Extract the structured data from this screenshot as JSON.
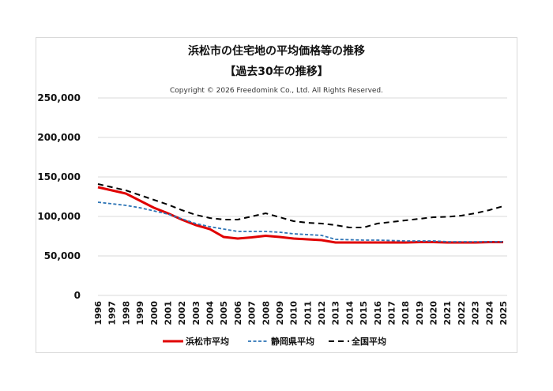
{
  "chart_data": {
    "type": "line",
    "title": "浜松市の住宅地の平均価格等の推移",
    "subtitle": "【過去30年の推移】",
    "copyright": "Copyright © 2026 Freedomink Co., Ltd. All Rights Reserved.",
    "ylim": [
      0,
      250000
    ],
    "yticks": [
      "0",
      "50,000",
      "100,000",
      "150,000",
      "200,000",
      "250,000"
    ],
    "ytick_values": [
      0,
      50000,
      100000,
      150000,
      200000,
      250000
    ],
    "grid": true,
    "legend": "bottom",
    "x": [
      "1996",
      "1997",
      "1998",
      "1999",
      "2000",
      "2001",
      "2002",
      "2003",
      "2004",
      "2005",
      "2006",
      "2007",
      "2008",
      "2009",
      "2010",
      "2011",
      "2012",
      "2013",
      "2014",
      "2015",
      "2016",
      "2017",
      "2018",
      "2019",
      "2020",
      "2021",
      "2022",
      "2023",
      "2024",
      "2025"
    ],
    "series": [
      {
        "name": "浜松市平均",
        "color": "#e00000",
        "style": "solid",
        "values": [
          137000,
          133000,
          129000,
          120000,
          111000,
          104000,
          96000,
          89000,
          84000,
          74000,
          72000,
          73500,
          75500,
          74000,
          72000,
          71000,
          70000,
          67000,
          67000,
          67000,
          67000,
          67000,
          67000,
          67500,
          67500,
          67000,
          67000,
          67000,
          67500,
          67500
        ]
      },
      {
        "name": "静岡県平均",
        "color": "#2e75b6",
        "style": "dashed-short",
        "values": [
          118000,
          116000,
          114000,
          111000,
          107000,
          103000,
          97000,
          91000,
          87000,
          84000,
          81000,
          81000,
          81000,
          80000,
          78000,
          77000,
          76000,
          71000,
          70500,
          70000,
          70000,
          69500,
          69000,
          69000,
          69000,
          68000,
          68000,
          68000,
          68000,
          68000
        ]
      },
      {
        "name": "全国平均",
        "color": "#000000",
        "style": "dashed",
        "values": [
          141000,
          137000,
          133000,
          127000,
          121000,
          115000,
          108000,
          102000,
          98000,
          96000,
          96000,
          100000,
          104000,
          99000,
          94000,
          92000,
          91000,
          89000,
          86000,
          86000,
          91000,
          93000,
          95000,
          97000,
          99000,
          99500,
          101000,
          104000,
          108000,
          113000
        ]
      }
    ]
  }
}
